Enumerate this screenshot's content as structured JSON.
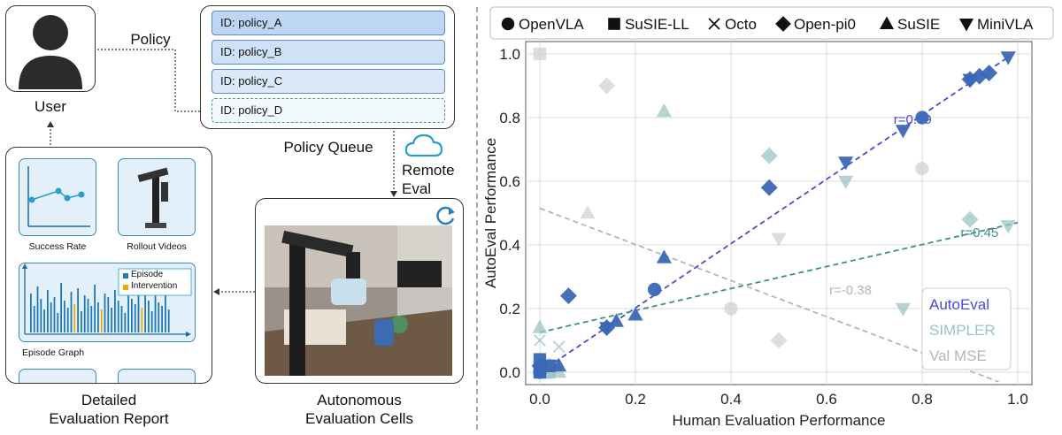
{
  "pipeline": {
    "user_label": "User",
    "policy_arrow_label": "Policy",
    "queue_title": "Policy Queue",
    "queue_items": [
      "ID: policy_A",
      "ID: policy_B",
      "ID: policy_C",
      "ID: policy_D"
    ],
    "remote_eval_label": "Remote\nEval",
    "cells_caption": "Autonomous\nEvaluation Cells",
    "report_caption": "Detailed\nEvaluation Report",
    "report_cards": {
      "success_rate": "Success Rate",
      "rollout_videos": "Rollout Videos",
      "episode_graph": "Episode Graph",
      "legend_episode": "Episode",
      "legend_intervention": "Intervention"
    },
    "colors": {
      "queue_fill": "#bcd6f4",
      "queue_fill_light": "#dbe9f9",
      "card_fill": "#e3f0fa",
      "episode": "#1f78b4",
      "intervention": "#f2a900"
    }
  },
  "chart_data": {
    "type": "scatter",
    "xlabel": "Human Evaluation Performance",
    "ylabel": "AutoEval Performance",
    "xlim": [
      0,
      1
    ],
    "ylim": [
      0,
      1
    ],
    "xticks": [
      "0.0",
      "0.2",
      "0.4",
      "0.6",
      "0.8",
      "1.0"
    ],
    "yticks": [
      "0.0",
      "0.2",
      "0.4",
      "0.6",
      "0.8",
      "1.0"
    ],
    "grid": true,
    "legend_top": [
      "OpenVLA",
      "SuSIE-LL",
      "Octo",
      "Open-pi0",
      "SuSIE",
      "MiniVLA"
    ],
    "legend_top_placement": "top",
    "legend_method": [
      "AutoEval",
      "SIMPLER",
      "Val MSE"
    ],
    "legend_method_placement": "bottom-right",
    "method_colors": {
      "AutoEval": "#3b67b5",
      "SIMPLER": "#9cc4c4",
      "Val MSE": "#d2d2d2"
    },
    "line_colors": {
      "AutoEval": "#4a4ad6",
      "SIMPLER": "#3d8f88",
      "Val MSE": "#b5b5b5"
    },
    "annotations": [
      "r=0.99",
      "r=0.45",
      "r=-0.38"
    ],
    "fits": [
      {
        "method": "AutoEval",
        "x0": 0.0,
        "y0": 0.0,
        "x1": 0.98,
        "y1": 0.99,
        "label": "r=0.99",
        "lx": 0.78,
        "ly": 0.78
      },
      {
        "method": "SIMPLER",
        "x0": 0.0,
        "y0": 0.125,
        "x1": 1.0,
        "y1": 0.47,
        "label": "r=0.45",
        "lx": 0.92,
        "ly": 0.425
      },
      {
        "method": "Val MSE",
        "x0": 0.0,
        "y0": 0.515,
        "x1": 0.96,
        "y1": -0.03,
        "label": "r=-0.38",
        "lx": 0.65,
        "ly": 0.245
      }
    ],
    "series": [
      {
        "method": "AutoEval",
        "points": [
          {
            "m": "circle",
            "x": 0.8,
            "y": 0.8
          },
          {
            "m": "circle",
            "x": 0.24,
            "y": 0.26
          },
          {
            "m": "circle",
            "x": 0.0,
            "y": 0.0
          },
          {
            "m": "diamond",
            "x": 0.48,
            "y": 0.58
          },
          {
            "m": "diamond",
            "x": 0.06,
            "y": 0.24
          },
          {
            "m": "diamond",
            "x": 0.9,
            "y": 0.92
          },
          {
            "m": "diamond",
            "x": 0.92,
            "y": 0.93
          },
          {
            "m": "diamond",
            "x": 0.94,
            "y": 0.94
          },
          {
            "m": "diamond",
            "x": 0.14,
            "y": 0.14
          },
          {
            "m": "diamond",
            "x": 0.0,
            "y": 0.02
          },
          {
            "m": "square",
            "x": 0.0,
            "y": 0.0
          },
          {
            "m": "square",
            "x": 0.02,
            "y": 0.02
          },
          {
            "m": "square",
            "x": 0.0,
            "y": 0.04
          },
          {
            "m": "triangle",
            "x": 0.26,
            "y": 0.36
          },
          {
            "m": "triangle",
            "x": 0.2,
            "y": 0.18
          },
          {
            "m": "triangle",
            "x": 0.16,
            "y": 0.16
          },
          {
            "m": "triangle",
            "x": 0.04,
            "y": 0.02
          },
          {
            "m": "tridown",
            "x": 0.98,
            "y": 0.99
          },
          {
            "m": "tridown",
            "x": 0.76,
            "y": 0.76
          },
          {
            "m": "tridown",
            "x": 0.64,
            "y": 0.66
          },
          {
            "m": "tridown",
            "x": 0.9,
            "y": 0.92
          },
          {
            "m": "tridown",
            "x": 0.14,
            "y": 0.14
          }
        ]
      },
      {
        "method": "SIMPLER",
        "points": [
          {
            "m": "circle",
            "x": 0.02,
            "y": 0.0
          },
          {
            "m": "diamond",
            "x": 0.48,
            "y": 0.68
          },
          {
            "m": "diamond",
            "x": 0.9,
            "y": 0.48
          },
          {
            "m": "diamond",
            "x": 0.02,
            "y": 0.02
          },
          {
            "m": "square",
            "x": 0.0,
            "y": 0.0
          },
          {
            "m": "square",
            "x": 0.02,
            "y": 0.0
          },
          {
            "m": "cross",
            "x": 0.0,
            "y": 0.1
          },
          {
            "m": "cross",
            "x": 0.04,
            "y": 0.08
          },
          {
            "m": "cross",
            "x": 0.0,
            "y": 0.02
          },
          {
            "m": "triangle",
            "x": 0.26,
            "y": 0.82
          },
          {
            "m": "triangle",
            "x": 0.0,
            "y": 0.14
          },
          {
            "m": "triangle",
            "x": 0.04,
            "y": 0.0
          },
          {
            "m": "tridown",
            "x": 0.64,
            "y": 0.6
          },
          {
            "m": "tridown",
            "x": 0.76,
            "y": 0.2
          },
          {
            "m": "tridown",
            "x": 0.98,
            "y": 0.46
          }
        ]
      },
      {
        "method": "Val MSE",
        "points": [
          {
            "m": "circle",
            "x": 0.8,
            "y": 0.64
          },
          {
            "m": "circle",
            "x": 0.4,
            "y": 0.2
          },
          {
            "m": "diamond",
            "x": 0.14,
            "y": 0.9
          },
          {
            "m": "diamond",
            "x": 0.5,
            "y": 0.1
          },
          {
            "m": "square",
            "x": 0.0,
            "y": 1.0
          },
          {
            "m": "triangle",
            "x": 0.1,
            "y": 0.5
          },
          {
            "m": "tridown",
            "x": 0.5,
            "y": 0.42
          }
        ]
      }
    ]
  }
}
